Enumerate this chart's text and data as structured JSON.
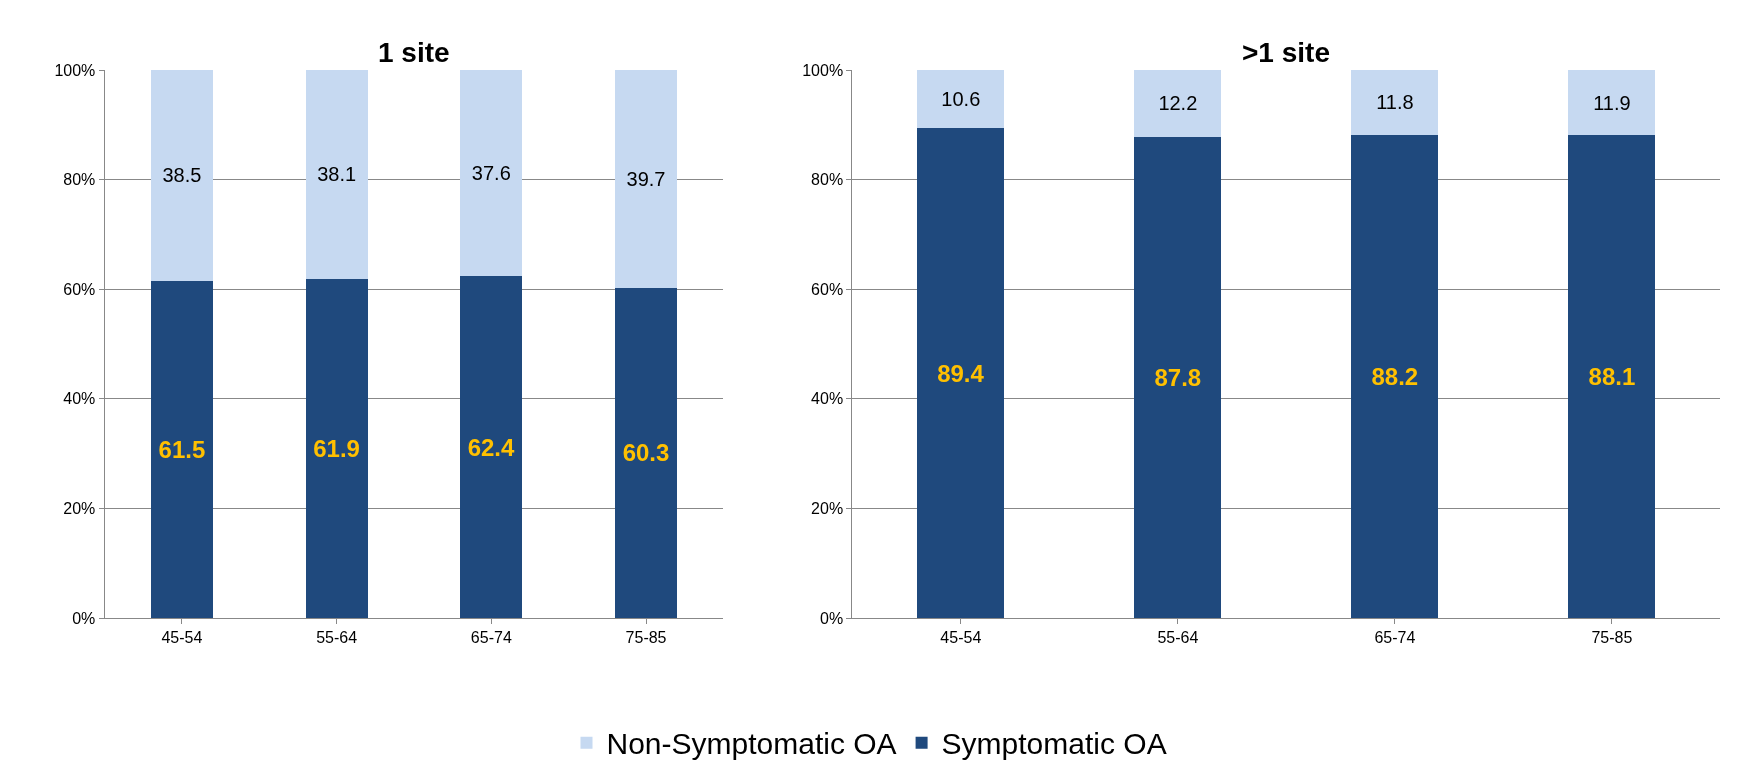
{
  "chart_data": [
    {
      "type": "bar",
      "title": "1 site",
      "categories": [
        "45-54",
        "55-64",
        "65-74",
        "75-85"
      ],
      "stacked": true,
      "data_labels": true,
      "grid": "y",
      "legend": "bottom",
      "ylim": [
        0,
        100
      ],
      "yticks": [
        {
          "value": 0,
          "label": "0%"
        },
        {
          "value": 20,
          "label": "20%"
        },
        {
          "value": 40,
          "label": "40%"
        },
        {
          "value": 60,
          "label": "60%"
        },
        {
          "value": 80,
          "label": "80%"
        },
        {
          "value": 100,
          "label": "100%"
        }
      ],
      "series": [
        {
          "name": "Symptomatic OA",
          "color": "#1f497d",
          "values": [
            61.5,
            61.9,
            62.4,
            60.3
          ]
        },
        {
          "name": "Non-Symptomatic OA",
          "color": "#c6d9f1",
          "values": [
            38.5,
            38.1,
            37.6,
            39.7
          ]
        }
      ]
    },
    {
      "type": "bar",
      "title": ">1 site",
      "categories": [
        "45-54",
        "55-64",
        "65-74",
        "75-85"
      ],
      "stacked": true,
      "data_labels": true,
      "grid": "y",
      "legend": "bottom",
      "ylim": [
        0,
        100
      ],
      "yticks": [
        {
          "value": 0,
          "label": "0%"
        },
        {
          "value": 20,
          "label": "20%"
        },
        {
          "value": 40,
          "label": "40%"
        },
        {
          "value": 60,
          "label": "60%"
        },
        {
          "value": 80,
          "label": "80%"
        },
        {
          "value": 100,
          "label": "100%"
        }
      ],
      "series": [
        {
          "name": "Symptomatic OA",
          "color": "#1f497d",
          "values": [
            89.4,
            87.8,
            88.2,
            88.1
          ]
        },
        {
          "name": "Non-Symptomatic OA",
          "color": "#c6d9f1",
          "values": [
            10.6,
            12.2,
            11.8,
            11.9
          ]
        }
      ]
    }
  ]
}
